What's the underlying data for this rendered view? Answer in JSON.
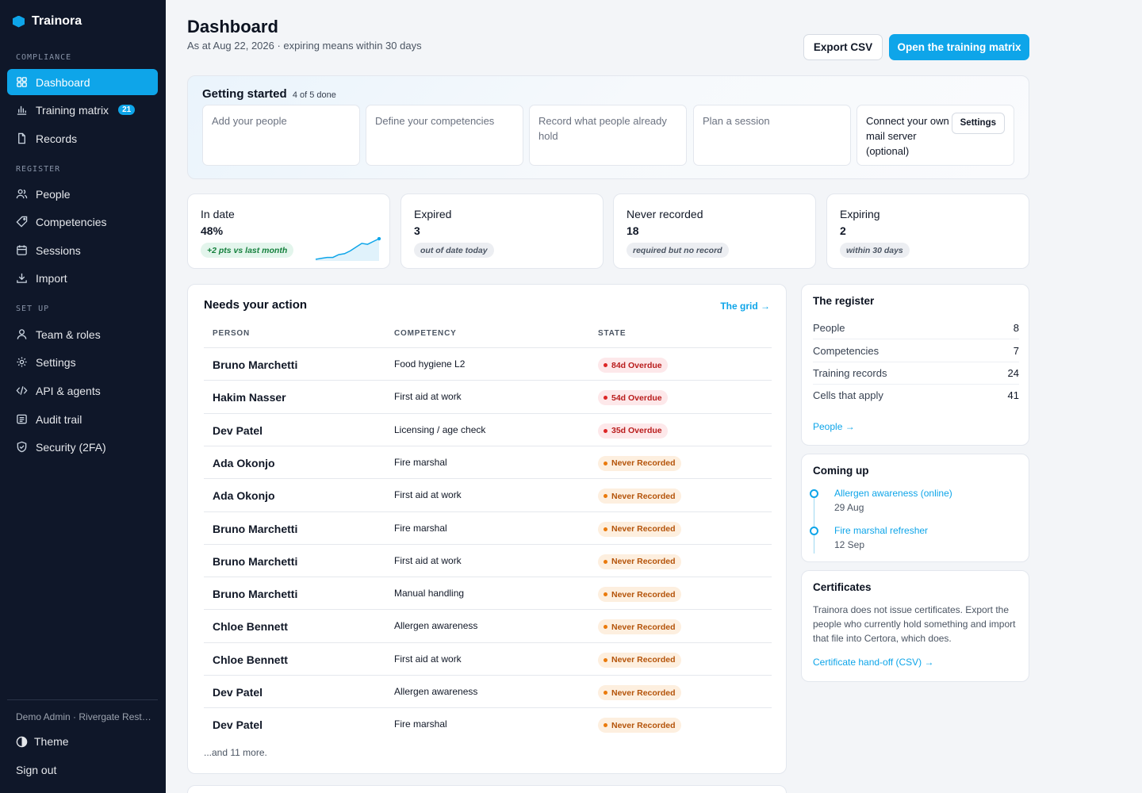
{
  "app": {
    "name": "Trainora"
  },
  "sidebar": {
    "sections": {
      "compliance": "COMPLIANCE",
      "register": "REGISTER",
      "setup": "SET UP"
    },
    "items": [
      {
        "label": "Dashboard",
        "icon": "grid-icon"
      },
      {
        "label": "Training matrix",
        "icon": "bar-chart-icon",
        "badge": "21"
      },
      {
        "label": "Records",
        "icon": "file-icon"
      },
      {
        "label": "People",
        "icon": "users-icon"
      },
      {
        "label": "Competencies",
        "icon": "tag-icon"
      },
      {
        "label": "Sessions",
        "icon": "calendar-icon"
      },
      {
        "label": "Import",
        "icon": "download-icon"
      },
      {
        "label": "Team & roles",
        "icon": "user-icon"
      },
      {
        "label": "Settings",
        "icon": "gear-icon"
      },
      {
        "label": "API & agents",
        "icon": "code-icon"
      },
      {
        "label": "Audit trail",
        "icon": "list-icon"
      },
      {
        "label": "Security (2FA)",
        "icon": "shield-icon"
      }
    ],
    "user": "Demo Admin · Rivergate Resta...",
    "theme_label": "Theme",
    "signout_label": "Sign out"
  },
  "header": {
    "title": "Dashboard",
    "subtitle": "As at Aug 22, 2026 · expiring means within 30 days",
    "export_label": "Export CSV",
    "primary_label": "Open the training matrix"
  },
  "getting_started": {
    "title": "Getting started",
    "progress": "4 of 5 done",
    "steps": [
      {
        "label": "Add your people"
      },
      {
        "label": "Define your competencies"
      },
      {
        "label": "Record what people already hold"
      },
      {
        "label": "Plan a session"
      },
      {
        "label": "Connect your own mail server (optional)",
        "button": "Settings"
      }
    ]
  },
  "stats": [
    {
      "label": "In date",
      "value": "48%",
      "note": "+2 pts vs last month",
      "spark": [
        4,
        5,
        6,
        6,
        9,
        10,
        13,
        17,
        21,
        20,
        23,
        26
      ]
    },
    {
      "label": "Expired",
      "value": "3",
      "note": "out of date today"
    },
    {
      "label": "Never recorded",
      "value": "18",
      "note": "required but no record"
    },
    {
      "label": "Expiring",
      "value": "2",
      "note": "within 30 days"
    }
  ],
  "actions": {
    "title": "Needs your action",
    "link": "The grid →",
    "columns": {
      "person": "PERSON",
      "competency": "COMPETENCY",
      "state": "STATE"
    },
    "rows": [
      {
        "person": "Bruno Marchetti",
        "competency": "Food hygiene L2",
        "state": "84d Overdue",
        "kind": "over"
      },
      {
        "person": "Hakim Nasser",
        "competency": "First aid at work",
        "state": "54d Overdue",
        "kind": "over"
      },
      {
        "person": "Dev Patel",
        "competency": "Licensing / age check",
        "state": "35d Overdue",
        "kind": "over"
      },
      {
        "person": "Ada Okonjo",
        "competency": "Fire marshal",
        "state": "Never Recorded",
        "kind": "never"
      },
      {
        "person": "Ada Okonjo",
        "competency": "First aid at work",
        "state": "Never Recorded",
        "kind": "never"
      },
      {
        "person": "Bruno Marchetti",
        "competency": "Fire marshal",
        "state": "Never Recorded",
        "kind": "never"
      },
      {
        "person": "Bruno Marchetti",
        "competency": "First aid at work",
        "state": "Never Recorded",
        "kind": "never"
      },
      {
        "person": "Bruno Marchetti",
        "competency": "Manual handling",
        "state": "Never Recorded",
        "kind": "never"
      },
      {
        "person": "Chloe Bennett",
        "competency": "Allergen awareness",
        "state": "Never Recorded",
        "kind": "never"
      },
      {
        "person": "Chloe Bennett",
        "competency": "First aid at work",
        "state": "Never Recorded",
        "kind": "never"
      },
      {
        "person": "Dev Patel",
        "competency": "Allergen awareness",
        "state": "Never Recorded",
        "kind": "never"
      },
      {
        "person": "Dev Patel",
        "competency": "Fire marshal",
        "state": "Never Recorded",
        "kind": "never"
      }
    ],
    "more": "...and 11 more."
  },
  "register": {
    "title": "The register",
    "rows": [
      {
        "label": "People",
        "value": "8"
      },
      {
        "label": "Competencies",
        "value": "7"
      },
      {
        "label": "Training records",
        "value": "24"
      },
      {
        "label": "Cells that apply",
        "value": "41"
      }
    ],
    "link": "People →"
  },
  "coming_up": {
    "title": "Coming up",
    "events": [
      {
        "name": "Allergen awareness (online)",
        "date": "29 Aug"
      },
      {
        "name": "Fire marshal refresher",
        "date": "12 Sep"
      }
    ]
  },
  "certificates": {
    "title": "Certificates",
    "body": "Trainora does not issue certificates. Export the people who currently hold something and import that file into Certora, which does.",
    "link": "Certificate hand-off (CSV) →"
  },
  "colors": {
    "accent": "#0ea5e9",
    "sidebar": "#0f1729",
    "overdue": "#b91c1c",
    "never": "#b45309",
    "positive": "#15803d"
  }
}
